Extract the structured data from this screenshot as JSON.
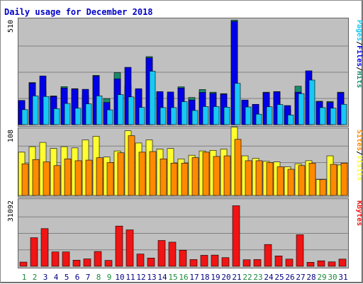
{
  "colors": {
    "background": "#ffffff",
    "panel": "#c0c0c0",
    "grid": "#808080",
    "pages": "#0000e8",
    "files": "#19c8f4",
    "hits": "#1a8a6a",
    "visits": "#ffff30",
    "sites": "#ff8a00",
    "kbytes": "#f01414",
    "title": "#0000c8",
    "weekday_label": "#000080",
    "weekend_label": "#1a8a3a"
  },
  "chart_data": [
    {
      "type": "bar",
      "title": "Daily usage for December 2018",
      "ylabel_parts": [
        "Pages",
        "Files",
        "Hits"
      ],
      "ytick": "510",
      "ylim": [
        0,
        510
      ],
      "categories": [
        "1",
        "2",
        "3",
        "4",
        "5",
        "6",
        "7",
        "8",
        "9",
        "10",
        "11",
        "12",
        "13",
        "14",
        "15",
        "16",
        "17",
        "18",
        "19",
        "20",
        "21",
        "22",
        "23",
        "24",
        "25",
        "26",
        "27",
        "28",
        "29",
        "30",
        "31"
      ],
      "weekend_days": [
        "1",
        "2",
        "8",
        "9",
        "15",
        "16",
        "22",
        "23",
        "29",
        "30"
      ],
      "series": [
        {
          "name": "Hits",
          "values": [
            115,
            205,
            165,
            140,
            185,
            175,
            142,
            240,
            127,
            253,
            190,
            171,
            331,
            158,
            140,
            184,
            132,
            171,
            158,
            151,
            509,
            118,
            98,
            158,
            161,
            74,
            187,
            213,
            114,
            113,
            158
          ]
        },
        {
          "name": "Pages",
          "values": [
            118,
            202,
            237,
            137,
            178,
            173,
            172,
            236,
            108,
            223,
            279,
            175,
            325,
            161,
            159,
            178,
            120,
            157,
            152,
            148,
            502,
            120,
            99,
            155,
            159,
            93,
            158,
            262,
            112,
            108,
            155
          ]
        },
        {
          "name": "Files",
          "values": [
            73,
            140,
            137,
            78,
            103,
            80,
            101,
            140,
            72,
            146,
            135,
            84,
            260,
            83,
            83,
            112,
            69,
            88,
            88,
            85,
            201,
            86,
            51,
            87,
            98,
            47,
            151,
            217,
            83,
            80,
            99
          ]
        }
      ]
    },
    {
      "type": "bar",
      "ylabel_parts": [
        "Sites",
        "Visits"
      ],
      "ytick": "108",
      "ylim": [
        0,
        108
      ],
      "categories": [
        "1",
        "2",
        "3",
        "4",
        "5",
        "6",
        "7",
        "8",
        "9",
        "10",
        "11",
        "12",
        "13",
        "14",
        "15",
        "16",
        "17",
        "18",
        "19",
        "20",
        "21",
        "22",
        "23",
        "24",
        "25",
        "26",
        "27",
        "28",
        "29",
        "30",
        "31"
      ],
      "series": [
        {
          "name": "Visits",
          "values": [
            71,
            80,
            87,
            77,
            80,
            78,
            91,
            97,
            63,
            73,
            106,
            86,
            91,
            76,
            77,
            60,
            66,
            73,
            74,
            76,
            112,
            65,
            61,
            56,
            55,
            47,
            52,
            57,
            26,
            65,
            50
          ]
        },
        {
          "name": "Sites",
          "values": [
            52,
            59,
            55,
            49,
            60,
            57,
            58,
            62,
            54,
            70,
            98,
            71,
            72,
            60,
            53,
            53,
            62,
            71,
            64,
            65,
            92,
            57,
            57,
            54,
            47,
            43,
            49,
            53,
            26,
            51,
            53
          ]
        }
      ]
    },
    {
      "type": "bar",
      "ylabel_parts": [
        "KBytes"
      ],
      "ytick": "31092",
      "ylim": [
        0,
        31092
      ],
      "categories": [
        "1",
        "2",
        "3",
        "4",
        "5",
        "6",
        "7",
        "8",
        "9",
        "10",
        "11",
        "12",
        "13",
        "14",
        "15",
        "16",
        "17",
        "18",
        "19",
        "20",
        "21",
        "22",
        "23",
        "24",
        "25",
        "26",
        "27",
        "28",
        "29",
        "30",
        "31"
      ],
      "series": [
        {
          "name": "KBytes",
          "values": [
            2000,
            13500,
            17800,
            6800,
            6800,
            2900,
            3500,
            7000,
            2800,
            19000,
            17200,
            5800,
            3900,
            12200,
            11400,
            7600,
            3200,
            5200,
            5300,
            4100,
            28600,
            3100,
            3200,
            10300,
            4900,
            3400,
            14900,
            1900,
            2600,
            2100,
            3400
          ]
        }
      ]
    }
  ]
}
